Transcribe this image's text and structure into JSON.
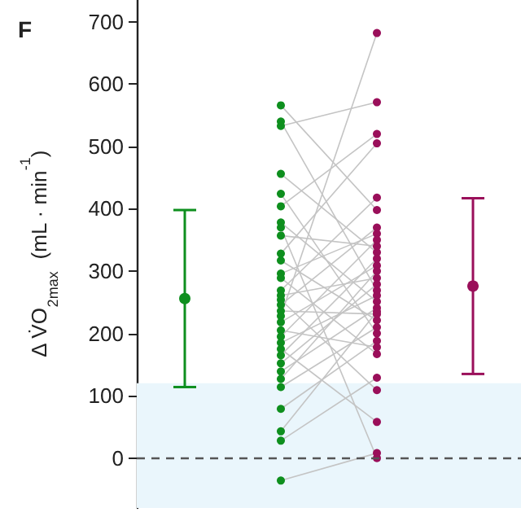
{
  "chart_data": {
    "type": "line",
    "title": "F",
    "ylabel": "Δ V̇O$_{2max}$  (mL · min$^{-1}$)",
    "categories": [
      null,
      null,
      null,
      null
    ],
    "ylim": [
      -80,
      735
    ],
    "yticks": [
      0,
      100,
      200,
      300,
      400,
      500,
      600,
      700
    ],
    "marker": "circle",
    "bands": [
      {
        "axis": "y",
        "from": -80,
        "to": 120,
        "color": "#eaf6fc"
      }
    ],
    "ref_lines": [
      {
        "axis": "y",
        "value": 0,
        "color": "#555555",
        "line_style": "dashed"
      }
    ],
    "series": [
      {
        "color": "#c4c4c4",
        "colors": [
          null,
          "#0e8f1e",
          "#9a0f5a",
          null
        ],
        "values": [
          null,
          566,
          398,
          null
        ]
      },
      {
        "color": "#c4c4c4",
        "colors": [
          null,
          "#0e8f1e",
          "#9a0f5a",
          null
        ],
        "values": [
          null,
          540,
          269,
          null
        ]
      },
      {
        "color": "#c4c4c4",
        "colors": [
          null,
          "#0e8f1e",
          "#9a0f5a",
          null
        ],
        "values": [
          null,
          533,
          571,
          null
        ]
      },
      {
        "color": "#c4c4c4",
        "colors": [
          null,
          "#0e8f1e",
          "#9a0f5a",
          null
        ],
        "values": [
          null,
          456,
          330,
          null
        ]
      },
      {
        "color": "#c4c4c4",
        "colors": [
          null,
          "#0e8f1e",
          "#9a0f5a",
          null
        ],
        "values": [
          null,
          424,
          200,
          null
        ]
      },
      {
        "color": "#c4c4c4",
        "colors": [
          null,
          "#0e8f1e",
          "#9a0f5a",
          null
        ],
        "values": [
          null,
          404,
          520,
          null
        ]
      },
      {
        "color": "#c4c4c4",
        "colors": [
          null,
          "#0e8f1e",
          "#9a0f5a",
          null
        ],
        "values": [
          null,
          378,
          251,
          null
        ]
      },
      {
        "color": "#c4c4c4",
        "colors": [
          null,
          "#0e8f1e",
          "#9a0f5a",
          null
        ],
        "values": [
          null,
          370,
          0,
          null
        ]
      },
      {
        "color": "#c4c4c4",
        "colors": [
          null,
          "#0e8f1e",
          "#9a0f5a",
          null
        ],
        "values": [
          null,
          357,
          340,
          null
        ]
      },
      {
        "color": "#c4c4c4",
        "colors": [
          null,
          "#0e8f1e",
          "#9a0f5a",
          null
        ],
        "values": [
          null,
          328,
          505,
          null
        ]
      },
      {
        "color": "#c4c4c4",
        "colors": [
          null,
          "#0e8f1e",
          "#9a0f5a",
          null
        ],
        "values": [
          null,
          317,
          221,
          null
        ]
      },
      {
        "color": "#c4c4c4",
        "colors": [
          null,
          "#0e8f1e",
          "#9a0f5a",
          null
        ],
        "values": [
          null,
          296,
          360,
          null
        ]
      },
      {
        "color": "#c4c4c4",
        "colors": [
          null,
          "#0e8f1e",
          "#9a0f5a",
          null
        ],
        "values": [
          null,
          289,
          167,
          null
        ]
      },
      {
        "color": "#c4c4c4",
        "colors": [
          null,
          "#0e8f1e",
          "#9a0f5a",
          null
        ],
        "values": [
          null,
          269,
          418,
          null
        ]
      },
      {
        "color": "#c4c4c4",
        "colors": [
          null,
          "#0e8f1e",
          "#9a0f5a",
          null
        ],
        "values": [
          null,
          261,
          289,
          null
        ]
      },
      {
        "color": "#c4c4c4",
        "colors": [
          null,
          "#0e8f1e",
          "#9a0f5a",
          null
        ],
        "values": [
          null,
          254,
          109,
          null
        ]
      },
      {
        "color": "#c4c4c4",
        "colors": [
          null,
          "#0e8f1e",
          "#9a0f5a",
          null
        ],
        "values": [
          null,
          246,
          370,
          null
        ]
      },
      {
        "color": "#c4c4c4",
        "colors": [
          null,
          "#0e8f1e",
          "#9a0f5a",
          null
        ],
        "values": [
          null,
          236,
          231,
          null
        ]
      },
      {
        "color": "#c4c4c4",
        "colors": [
          null,
          "#0e8f1e",
          "#9a0f5a",
          null
        ],
        "values": [
          null,
          228,
          682,
          null
        ]
      },
      {
        "color": "#c4c4c4",
        "colors": [
          null,
          "#0e8f1e",
          "#9a0f5a",
          null
        ],
        "values": [
          null,
          218,
          309,
          null
        ]
      },
      {
        "color": "#c4c4c4",
        "colors": [
          null,
          "#0e8f1e",
          "#9a0f5a",
          null
        ],
        "values": [
          null,
          205,
          178,
          null
        ]
      },
      {
        "color": "#c4c4c4",
        "colors": [
          null,
          "#0e8f1e",
          "#9a0f5a",
          null
        ],
        "values": [
          null,
          195,
          350,
          null
        ]
      },
      {
        "color": "#c4c4c4",
        "colors": [
          null,
          "#0e8f1e",
          "#9a0f5a",
          null
        ],
        "values": [
          null,
          185,
          261,
          null
        ]
      },
      {
        "color": "#c4c4c4",
        "colors": [
          null,
          "#0e8f1e",
          "#9a0f5a",
          null
        ],
        "values": [
          null,
          175,
          58,
          null
        ]
      },
      {
        "color": "#c4c4c4",
        "colors": [
          null,
          "#0e8f1e",
          "#9a0f5a",
          null
        ],
        "values": [
          null,
          165,
          320,
          null
        ]
      },
      {
        "color": "#c4c4c4",
        "colors": [
          null,
          "#0e8f1e",
          "#9a0f5a",
          null
        ],
        "values": [
          null,
          152,
          279,
          null
        ]
      },
      {
        "color": "#c4c4c4",
        "colors": [
          null,
          "#0e8f1e",
          "#9a0f5a",
          null
        ],
        "values": [
          null,
          139,
          241,
          null
        ]
      },
      {
        "color": "#c4c4c4",
        "colors": [
          null,
          "#0e8f1e",
          "#9a0f5a",
          null
        ],
        "values": [
          null,
          127,
          300,
          null
        ]
      },
      {
        "color": "#c4c4c4",
        "colors": [
          null,
          "#0e8f1e",
          "#9a0f5a",
          null
        ],
        "values": [
          null,
          114,
          210,
          null
        ]
      },
      {
        "color": "#c4c4c4",
        "colors": [
          null,
          "#0e8f1e",
          "#9a0f5a",
          null
        ],
        "values": [
          null,
          79,
          188,
          null
        ]
      },
      {
        "color": "#c4c4c4",
        "colors": [
          null,
          "#0e8f1e",
          "#9a0f5a",
          null
        ],
        "values": [
          null,
          43,
          235,
          null
        ]
      },
      {
        "color": "#c4c4c4",
        "colors": [
          null,
          "#0e8f1e",
          "#9a0f5a",
          null
        ],
        "values": [
          null,
          28,
          129,
          null
        ]
      },
      {
        "color": "#c4c4c4",
        "colors": [
          null,
          "#0e8f1e",
          "#9a0f5a",
          null
        ],
        "values": [
          null,
          -36,
          8,
          null
        ]
      },
      {
        "type": "scatter",
        "color": "#0e8f1e",
        "values": [
          256,
          null,
          null,
          null
        ],
        "errors": [
          142,
          null,
          null,
          null
        ]
      },
      {
        "type": "scatter",
        "color": "#9a0f5a",
        "values": [
          null,
          null,
          null,
          276
        ],
        "errors": [
          null,
          null,
          null,
          141
        ]
      }
    ]
  }
}
